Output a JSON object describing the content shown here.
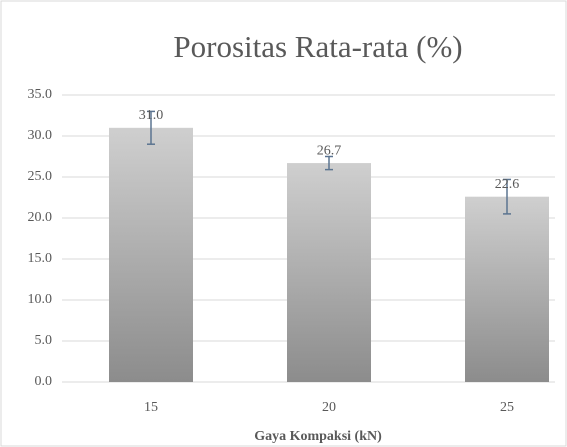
{
  "chart_data": {
    "type": "bar",
    "title": "Porositas Rata-rata  (%)",
    "x_label": "Gaya Kompaksi (kN)",
    "categories": [
      "15",
      "20",
      "25"
    ],
    "values": [
      31.0,
      26.7,
      22.6
    ],
    "value_labels": [
      "31.0",
      "26.7",
      "22.6"
    ],
    "errors": [
      2.0,
      0.8,
      2.1
    ],
    "color": "#8c8c8c",
    "ylim": [
      0,
      35
    ],
    "yticks": [
      {
        "value": 0,
        "label": "0.0"
      },
      {
        "value": 5,
        "label": "5.0"
      },
      {
        "value": 10,
        "label": "10.0"
      },
      {
        "value": 15,
        "label": "15.0"
      },
      {
        "value": 20,
        "label": "20.0"
      },
      {
        "value": 25,
        "label": "25.0"
      },
      {
        "value": 30,
        "label": "30.0"
      },
      {
        "value": 35,
        "label": "35.0"
      }
    ],
    "grid": true
  }
}
